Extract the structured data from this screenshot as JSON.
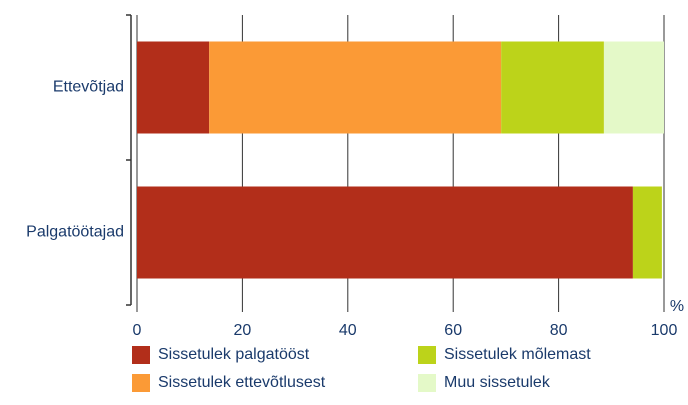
{
  "chart_data": {
    "type": "stacked_barh",
    "categories": [
      "Ettevõtjad",
      "Palgatöötajad"
    ],
    "series": [
      {
        "name": "Sissetulek palgatööst",
        "color": "#b22e1a",
        "values": [
          13.7,
          94.1
        ]
      },
      {
        "name": "Sissetulek ettevõtlusest",
        "color": "#fb9a36",
        "values": [
          55.4,
          0
        ]
      },
      {
        "name": "Sissetulek mõlemast",
        "color": "#bcd31a",
        "values": [
          19.5,
          5.5
        ]
      },
      {
        "name": "Muu sissetulek",
        "color": "#e4f9c8",
        "values": [
          11.4,
          0
        ]
      }
    ],
    "xlabel": "%",
    "xlim": [
      0,
      100
    ],
    "xticks": [
      0,
      20,
      40,
      60,
      80,
      100
    ],
    "grid": true
  }
}
